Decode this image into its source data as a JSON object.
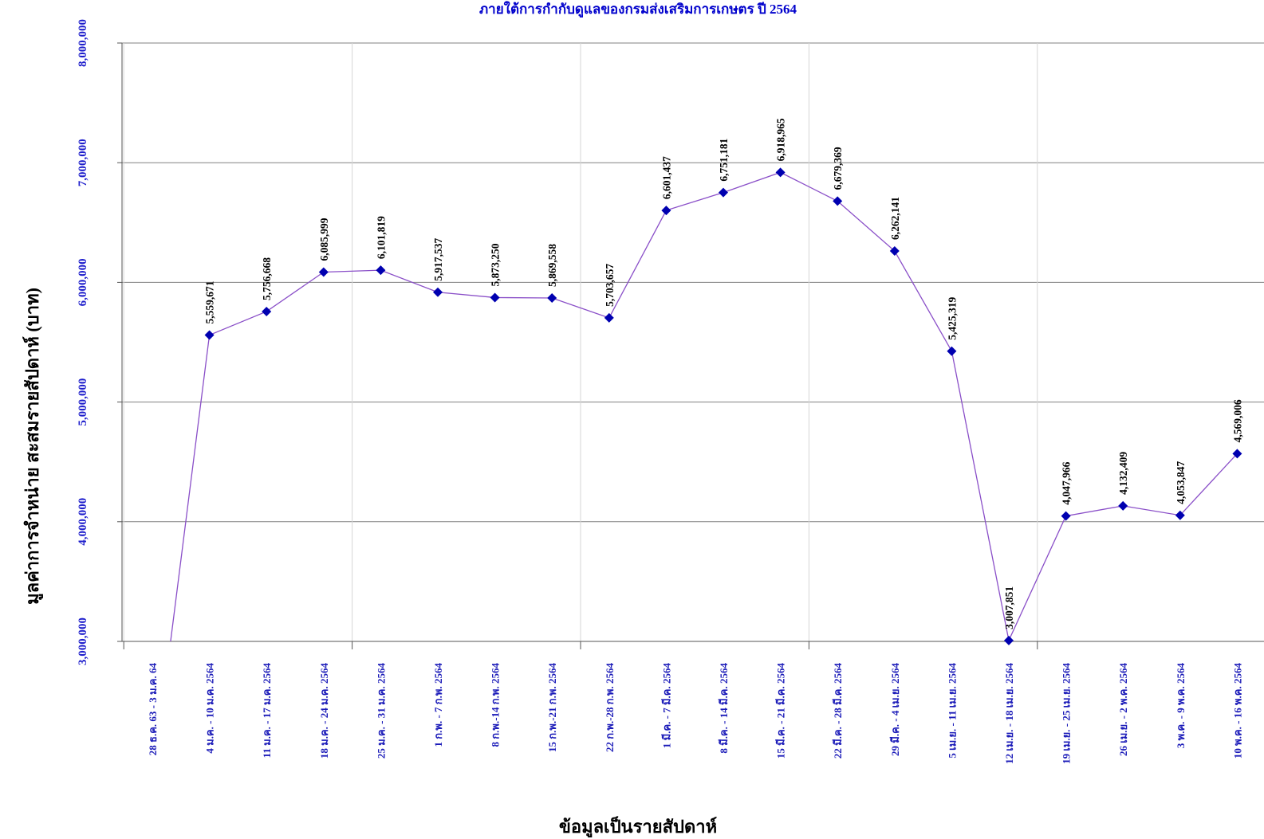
{
  "chart_data": {
    "type": "line",
    "title": "ภายใต้การกำกับดูแลของกรมส่งเสริมการเกษตร  ปี 2564",
    "xlabel": "ข้อมูลเป็นรายสัปดาห์",
    "ylabel": "มูลค่าการจำหน่าย สะสมรายสัปดาห์  (บาท)",
    "ylim": [
      3000000,
      8000000
    ],
    "yticks": [
      "3,000,000",
      "4,000,000",
      "5,000,000",
      "6,000,000",
      "7,000,000",
      "8,000,000"
    ],
    "grid": true,
    "legend": "none",
    "colors": {
      "line": "#8a4fc8",
      "marker": "#0000b0",
      "axis_text": "#1a1ab8",
      "grid": "#808080"
    },
    "categories": [
      "28 ธ.ค. 63 - 3 ม.ค. 64",
      "4 ม.ค. - 10 ม.ค. 2564",
      "11 ม.ค. - 17 ม.ค. 2564",
      "18 ม.ค. - 24 ม.ค. 2564",
      "25 ม.ค. - 31 ม.ค. 2564",
      "1 ก.พ. - 7 ก.พ. 2564",
      "8 ก.พ.-14 ก.พ. 2564",
      "15 ก.พ.-21 ก.พ. 2564",
      "22 ก.พ.-28 ก.พ. 2564",
      "1 มี.ค. - 7 มี.ค. 2564",
      "8 มี.ค. - 14 มี.ค. 2564",
      "15 มี.ค. - 21 มี.ค. 2564",
      "22 มี.ค. - 28 มี.ค. 2564",
      "29 มี.ค. - 4 เม.ย. 2564",
      "5 เม.ย. - 11 เม.ย. 2564",
      "12 เม.ย. - 18 เม.ย. 2564",
      "19 เม.ย. - 25 เม.ย. 2564",
      "26 เม.ย. - 2 พ.ค. 2564",
      "3 พ.ค. - 9 พ.ค. 2564",
      "10 พ.ค. - 16 พ.ค. 2564"
    ],
    "series": [
      {
        "values": [
          null,
          5559671,
          5756668,
          6085999,
          6101819,
          5917537,
          5873250,
          5869558,
          5703657,
          6601437,
          6751181,
          6918965,
          6679369,
          6262141,
          5425319,
          3007851,
          4047966,
          4132409,
          4053847,
          4569006
        ],
        "labels": [
          null,
          "5,559,671",
          "5,756,668",
          "6,085,999",
          "6,101,819",
          "5,917,537",
          "5,873,250",
          "5,869,558",
          "5,703,657",
          "6,601,437",
          "6,751,181",
          "6,918,965",
          "6,679,369",
          "6,262,141",
          "5,425,319",
          "3,007,851",
          "4,047,966",
          "4,132,409",
          "4,053,847",
          "4,569,006"
        ]
      }
    ]
  }
}
